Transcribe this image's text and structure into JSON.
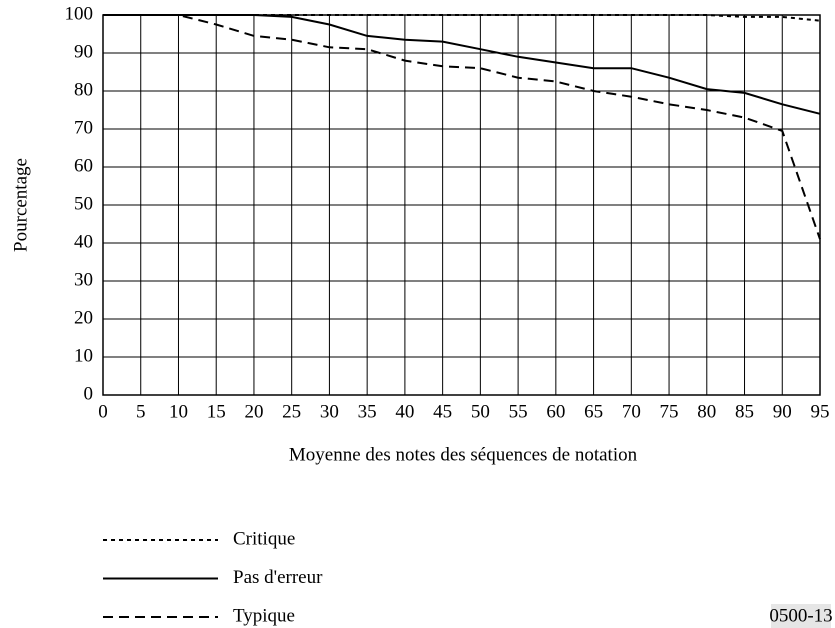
{
  "chart_data": {
    "type": "line",
    "ylabel": "Pourcentage",
    "xlabel": "Moyenne des notes des séquences de notation",
    "annotation": "0500-13",
    "x": [
      0,
      5,
      10,
      15,
      20,
      25,
      30,
      35,
      40,
      45,
      50,
      55,
      60,
      65,
      70,
      75,
      80,
      85,
      90,
      95
    ],
    "xlim": [
      0,
      95
    ],
    "xticks": [
      0,
      5,
      10,
      15,
      20,
      25,
      30,
      35,
      40,
      45,
      50,
      55,
      60,
      65,
      70,
      75,
      80,
      85,
      90,
      95
    ],
    "ylim": [
      0,
      100
    ],
    "yticks": [
      0,
      10,
      20,
      30,
      40,
      50,
      60,
      70,
      80,
      90,
      100
    ],
    "grid": true,
    "legend": "bottom-left",
    "series": [
      {
        "name": "Critique",
        "color": "#000000",
        "style": "dotted",
        "values": [
          100,
          100,
          100,
          100,
          100,
          100,
          100,
          100,
          100,
          100,
          100,
          100,
          100,
          100,
          100,
          100,
          100,
          99.5,
          99.5,
          98.5
        ]
      },
      {
        "name": "Pas d'erreur",
        "color": "#000000",
        "style": "solid",
        "values": [
          100,
          100,
          100,
          100,
          100,
          99.5,
          97.5,
          94.5,
          93.5,
          93,
          91,
          89,
          87.5,
          86,
          86,
          83.5,
          80.5,
          79.5,
          76.5,
          74
        ]
      },
      {
        "name": "Typique",
        "color": "#000000",
        "style": "dashed",
        "values": [
          100,
          100,
          100,
          97.5,
          94.5,
          93.5,
          91.5,
          91,
          88,
          86.5,
          86,
          83.5,
          82.5,
          80,
          78.5,
          76.5,
          75,
          73,
          69.5,
          41
        ]
      }
    ]
  }
}
